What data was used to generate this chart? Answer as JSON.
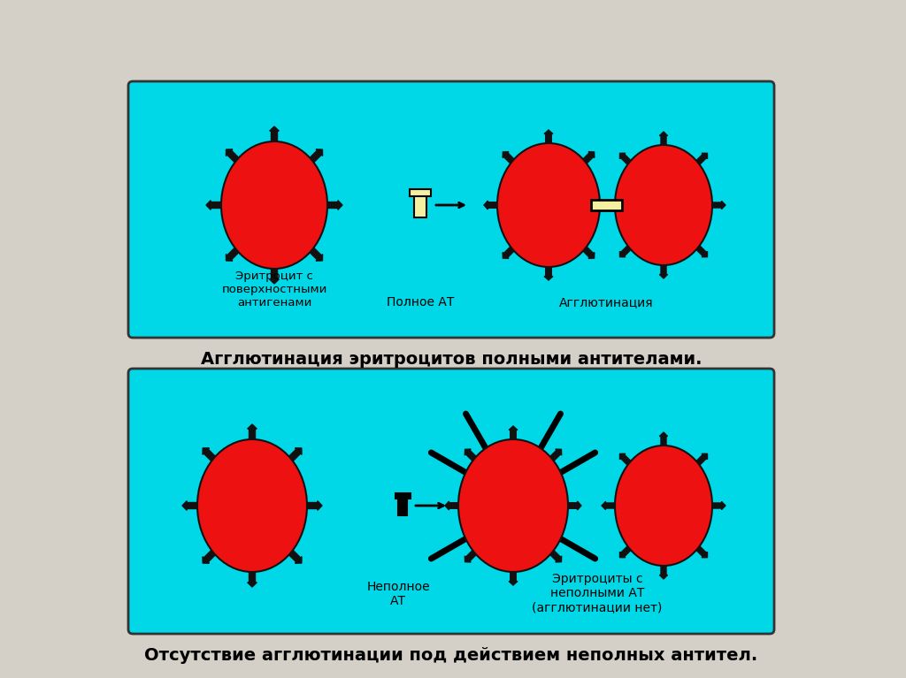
{
  "bg_color": "#d4d0c8",
  "box_color": "#00d8e8",
  "box_edge_color": "#333333",
  "erythrocyte_color": "#ee1111",
  "erythrocyte_edge_color": "#111111",
  "antibody_color_full": "#f5f0a0",
  "antibody_color_incomplete": "#555555",
  "title1": "Агглютинация эритроцитов полными антителами.",
  "title2": "Отсутствие агглютинации под действием неполных антител.",
  "label_erythrocyte": "Эритроцит с\nповерхностными\nантигенами",
  "label_full_at": "Полное АТ",
  "label_agglutination": "Агглютинация",
  "label_incomplete_at": "Неполное\nАТ",
  "label_erythrocytes_incomplete": "Эритроциты с\nнеполными АТ\n(агглютинации нет)"
}
